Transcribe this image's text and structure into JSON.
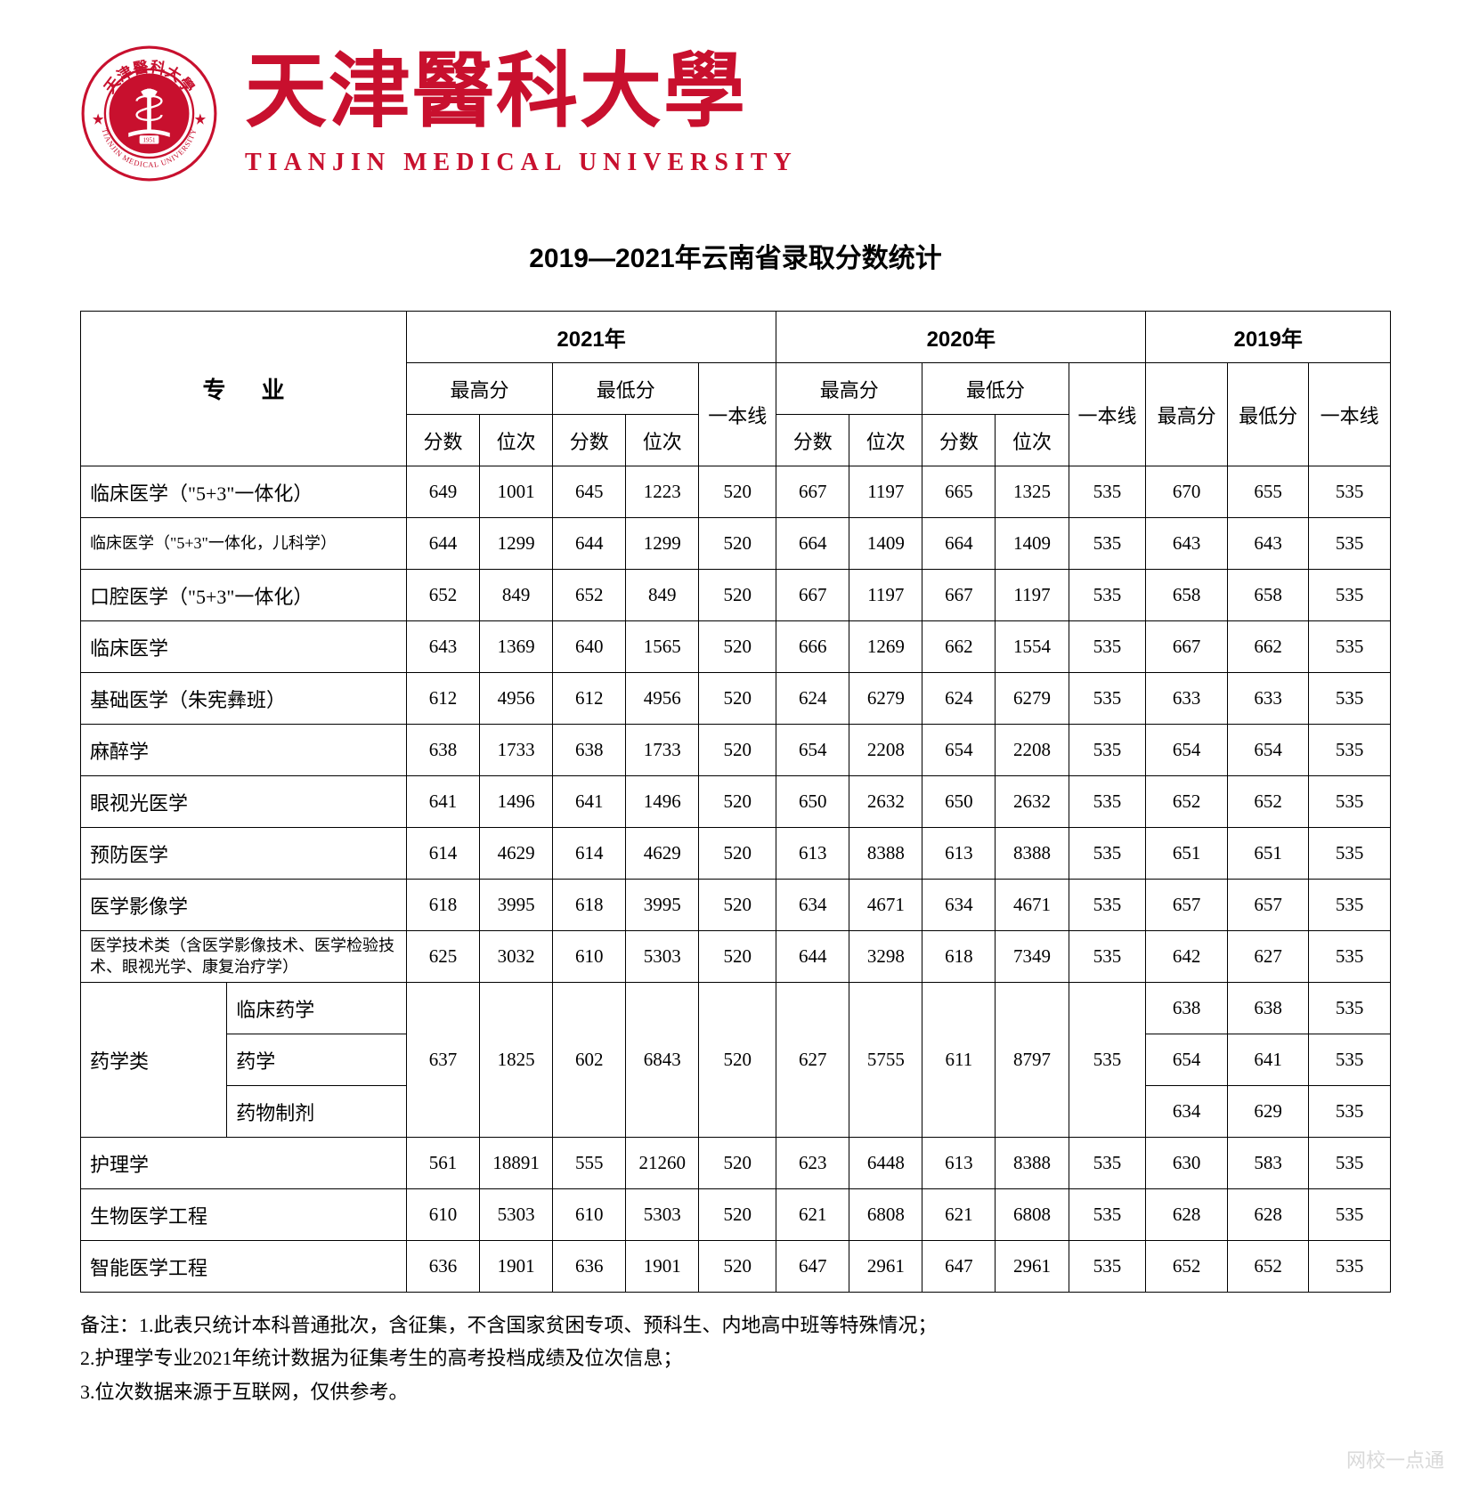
{
  "brand": {
    "cn_name": "天津醫科大學",
    "en_name": "TIANJIN MEDICAL UNIVERSITY",
    "seal_color": "#c8102e",
    "seal_year": "1951"
  },
  "page_title": "2019—2021年云南省录取分数统计",
  "headers": {
    "major": "专业",
    "y2021": "2021年",
    "y2020": "2020年",
    "y2019": "2019年",
    "max": "最高分",
    "min": "最低分",
    "line": "一本线",
    "score": "分数",
    "rank": "位次",
    "max19": "最高分",
    "min19": "最低分"
  },
  "rows": [
    {
      "major": "临床医学（\"5+3\"一体化）",
      "d": [
        "649",
        "1001",
        "645",
        "1223",
        "520",
        "667",
        "1197",
        "665",
        "1325",
        "535",
        "670",
        "655",
        "535"
      ]
    },
    {
      "major": "临床医学（\"5+3\"一体化，儿科学）",
      "small": true,
      "d": [
        "644",
        "1299",
        "644",
        "1299",
        "520",
        "664",
        "1409",
        "664",
        "1409",
        "535",
        "643",
        "643",
        "535"
      ]
    },
    {
      "major": "口腔医学（\"5+3\"一体化）",
      "d": [
        "652",
        "849",
        "652",
        "849",
        "520",
        "667",
        "1197",
        "667",
        "1197",
        "535",
        "658",
        "658",
        "535"
      ]
    },
    {
      "major": "临床医学",
      "d": [
        "643",
        "1369",
        "640",
        "1565",
        "520",
        "666",
        "1269",
        "662",
        "1554",
        "535",
        "667",
        "662",
        "535"
      ]
    },
    {
      "major": "基础医学（朱宪彝班）",
      "d": [
        "612",
        "4956",
        "612",
        "4956",
        "520",
        "624",
        "6279",
        "624",
        "6279",
        "535",
        "633",
        "633",
        "535"
      ]
    },
    {
      "major": "麻醉学",
      "d": [
        "638",
        "1733",
        "638",
        "1733",
        "520",
        "654",
        "2208",
        "654",
        "2208",
        "535",
        "654",
        "654",
        "535"
      ]
    },
    {
      "major": "眼视光医学",
      "d": [
        "641",
        "1496",
        "641",
        "1496",
        "520",
        "650",
        "2632",
        "650",
        "2632",
        "535",
        "652",
        "652",
        "535"
      ]
    },
    {
      "major": "预防医学",
      "d": [
        "614",
        "4629",
        "614",
        "4629",
        "520",
        "613",
        "8388",
        "613",
        "8388",
        "535",
        "651",
        "651",
        "535"
      ]
    },
    {
      "major": "医学影像学",
      "d": [
        "618",
        "3995",
        "618",
        "3995",
        "520",
        "634",
        "4671",
        "634",
        "4671",
        "535",
        "657",
        "657",
        "535"
      ]
    },
    {
      "major": "医学技术类（含医学影像技术、医学检验技术、眼视光学、康复治疗学）",
      "small": true,
      "d": [
        "625",
        "3032",
        "610",
        "5303",
        "520",
        "644",
        "3298",
        "618",
        "7349",
        "535",
        "642",
        "627",
        "535"
      ]
    }
  ],
  "pharma_group": {
    "group_label": "药学类",
    "subs": [
      "临床药学",
      "药学",
      "药物制剂"
    ],
    "shared_21_20": [
      "637",
      "1825",
      "602",
      "6843",
      "520",
      "627",
      "5755",
      "611",
      "8797",
      "535"
    ],
    "d19": [
      [
        "638",
        "638",
        "535"
      ],
      [
        "654",
        "641",
        "535"
      ],
      [
        "634",
        "629",
        "535"
      ]
    ]
  },
  "tail_rows": [
    {
      "major": "护理学",
      "d": [
        "561",
        "18891",
        "555",
        "21260",
        "520",
        "623",
        "6448",
        "613",
        "8388",
        "535",
        "630",
        "583",
        "535"
      ]
    },
    {
      "major": "生物医学工程",
      "d": [
        "610",
        "5303",
        "610",
        "5303",
        "520",
        "621",
        "6808",
        "621",
        "6808",
        "535",
        "628",
        "628",
        "535"
      ]
    },
    {
      "major": "智能医学工程",
      "d": [
        "636",
        "1901",
        "636",
        "1901",
        "520",
        "647",
        "2961",
        "647",
        "2961",
        "535",
        "652",
        "652",
        "535"
      ]
    }
  ],
  "notes": [
    "备注：1.此表只统计本科普通批次，含征集，不含国家贫困专项、预科生、内地高中班等特殊情况；",
    "2.护理学专业2021年统计数据为征集考生的高考投档成绩及位次信息；",
    "3.位次数据来源于互联网，仅供参考。"
  ],
  "watermark": "网校一点通"
}
